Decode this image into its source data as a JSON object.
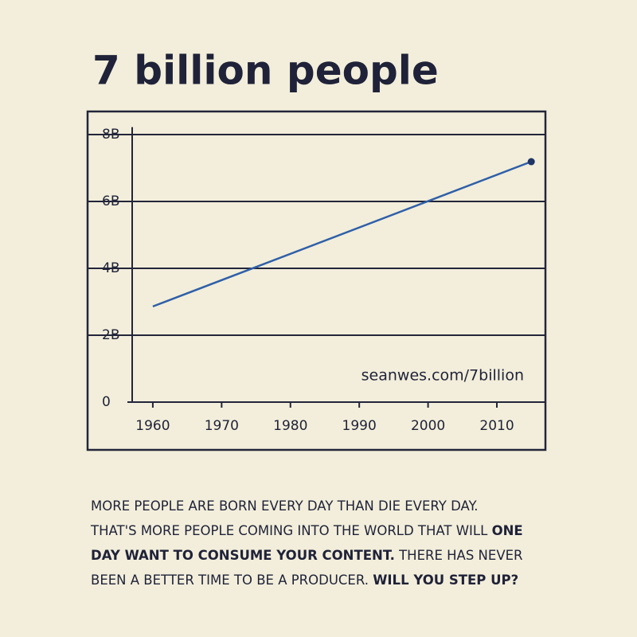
{
  "chart_data": {
    "type": "line",
    "title": "7 billion people",
    "x": [
      1960,
      2015
    ],
    "values": [
      2.86,
      7.19
    ],
    "color": "#2f5fa8",
    "marker": "last",
    "xlim": [
      1957,
      2017
    ],
    "xticks": [
      1960,
      1970,
      1980,
      1990,
      2000,
      2010
    ],
    "ylim": [
      0,
      8.7
    ],
    "yticks": [
      0,
      {
        "value": 2,
        "label": "2B"
      },
      {
        "value": 4,
        "label": "4B"
      },
      {
        "value": 6,
        "label": "6B"
      },
      {
        "value": 8,
        "label": "8B"
      }
    ],
    "grid": true,
    "annotation": "seanwes.com/7billion"
  },
  "caption": [
    [
      {
        "text": "MORE PEOPLE ARE BORN EVERY DAY THAN DIE EVERY DAY.",
        "bold": false
      }
    ],
    [
      {
        "text": "THAT'S MORE PEOPLE COMING INTO THE WORLD THAT WILL ",
        "bold": false
      },
      {
        "text": "ONE",
        "bold": true
      }
    ],
    [
      {
        "text": "DAY WANT TO CONSUME YOUR CONTENT.",
        "bold": true
      },
      {
        "text": " THERE HAS NEVER",
        "bold": false
      }
    ],
    [
      {
        "text": "BEEN A BETTER TIME TO BE A PRODUCER. ",
        "bold": false
      },
      {
        "text": "WILL YOU STEP UP?",
        "bold": true
      }
    ]
  ]
}
